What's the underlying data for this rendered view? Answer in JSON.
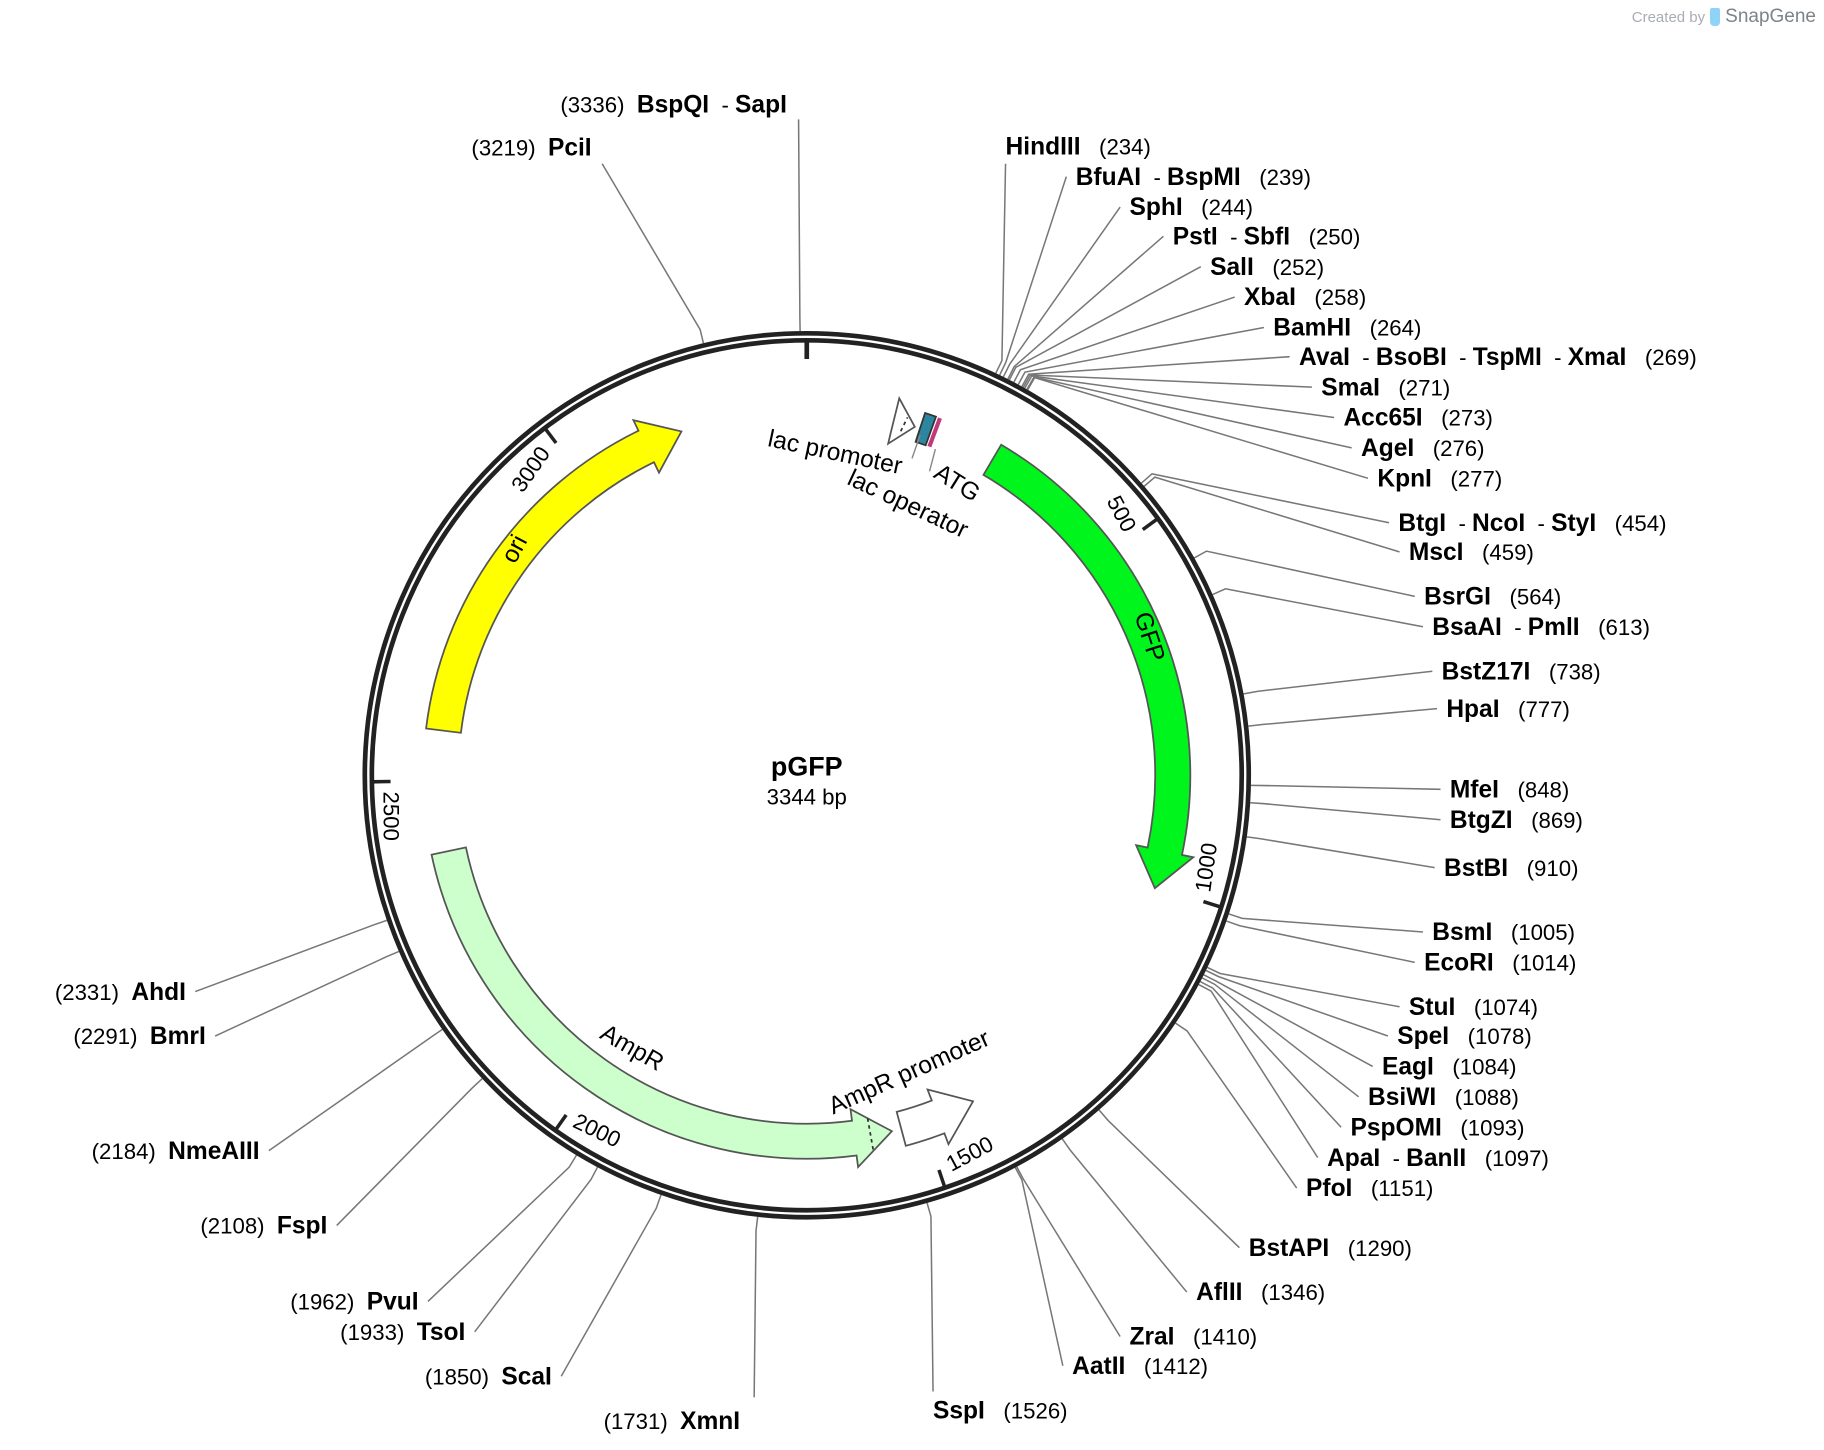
{
  "attribution": {
    "prefix": "Created by",
    "brand": "SnapGene"
  },
  "plasmid": {
    "name": "pGFP",
    "length_label": "3344 bp",
    "length": 3344
  },
  "ticks": [
    {
      "bp": 500,
      "label": "500"
    },
    {
      "bp": 1000,
      "label": "1000"
    },
    {
      "bp": 1500,
      "label": "1500"
    },
    {
      "bp": 2000,
      "label": "2000"
    },
    {
      "bp": 2500,
      "label": "2500"
    },
    {
      "bp": 3000,
      "label": "3000"
    }
  ],
  "features": [
    {
      "name": "GFP",
      "start": 283,
      "end": 1003,
      "direction": "forward",
      "color": "#00f51c",
      "type": "arrow"
    },
    {
      "name": "ori",
      "start": 2573,
      "end": 3158,
      "direction": "forward",
      "color": "#ffff00",
      "type": "arrow"
    },
    {
      "name": "AmpR",
      "start": 1547,
      "end": 2397,
      "direction": "reverse",
      "color": "#ccffcc",
      "type": "arrow"
    },
    {
      "name": "AmpR promoter",
      "start": 1421,
      "end": 1533,
      "direction": "reverse",
      "color": "#ffffff",
      "type": "arrow"
    },
    {
      "name": "lac promoter",
      "start": 128,
      "end": 160,
      "direction": "forward",
      "color": "#ffffff",
      "type": "arrow"
    },
    {
      "name": "lac operator",
      "start": 168,
      "end": 184,
      "direction": "none",
      "color": "#2d86a0",
      "type": "box"
    },
    {
      "name": "ATG",
      "start": 190,
      "end": 192,
      "direction": "none",
      "color": "#c0397a",
      "type": "line"
    }
  ],
  "enzymes": [
    {
      "names": [
        "HindIII"
      ],
      "pos": 234
    },
    {
      "names": [
        "BfuAI",
        "BspMI"
      ],
      "pos": 239
    },
    {
      "names": [
        "SphI"
      ],
      "pos": 244
    },
    {
      "names": [
        "PstI",
        "SbfI"
      ],
      "pos": 250
    },
    {
      "names": [
        "SalI"
      ],
      "pos": 252
    },
    {
      "names": [
        "XbaI"
      ],
      "pos": 258
    },
    {
      "names": [
        "BamHI"
      ],
      "pos": 264
    },
    {
      "names": [
        "AvaI",
        "BsoBI",
        "TspMI",
        "XmaI"
      ],
      "pos": 269
    },
    {
      "names": [
        "SmaI"
      ],
      "pos": 271
    },
    {
      "names": [
        "Acc65I"
      ],
      "pos": 273
    },
    {
      "names": [
        "AgeI"
      ],
      "pos": 276
    },
    {
      "names": [
        "KpnI"
      ],
      "pos": 277
    },
    {
      "names": [
        "BtgI",
        "NcoI",
        "StyI"
      ],
      "pos": 454
    },
    {
      "names": [
        "MscI"
      ],
      "pos": 459
    },
    {
      "names": [
        "BsrGI"
      ],
      "pos": 564
    },
    {
      "names": [
        "BsaAI",
        "PmlI"
      ],
      "pos": 613
    },
    {
      "names": [
        "BstZ17I"
      ],
      "pos": 738
    },
    {
      "names": [
        "HpaI"
      ],
      "pos": 777
    },
    {
      "names": [
        "MfeI"
      ],
      "pos": 848
    },
    {
      "names": [
        "BtgZI"
      ],
      "pos": 869
    },
    {
      "names": [
        "BstBI"
      ],
      "pos": 910
    },
    {
      "names": [
        "BsmI"
      ],
      "pos": 1005
    },
    {
      "names": [
        "EcoRI"
      ],
      "pos": 1014
    },
    {
      "names": [
        "StuI"
      ],
      "pos": 1074
    },
    {
      "names": [
        "SpeI"
      ],
      "pos": 1078
    },
    {
      "names": [
        "EagI"
      ],
      "pos": 1084
    },
    {
      "names": [
        "BsiWI"
      ],
      "pos": 1088
    },
    {
      "names": [
        "PspOMI"
      ],
      "pos": 1093
    },
    {
      "names": [
        "ApaI",
        "BanII"
      ],
      "pos": 1097
    },
    {
      "names": [
        "PfoI"
      ],
      "pos": 1151
    },
    {
      "names": [
        "BstAPI"
      ],
      "pos": 1290
    },
    {
      "names": [
        "AflII"
      ],
      "pos": 1346
    },
    {
      "names": [
        "ZraI"
      ],
      "pos": 1410
    },
    {
      "names": [
        "AatII"
      ],
      "pos": 1412
    },
    {
      "names": [
        "SspI"
      ],
      "pos": 1526
    },
    {
      "names": [
        "XmnI"
      ],
      "pos": 1731
    },
    {
      "names": [
        "ScaI"
      ],
      "pos": 1850
    },
    {
      "names": [
        "TsoI"
      ],
      "pos": 1933
    },
    {
      "names": [
        "PvuI"
      ],
      "pos": 1962
    },
    {
      "names": [
        "FspI"
      ],
      "pos": 2108
    },
    {
      "names": [
        "NmeAIII"
      ],
      "pos": 2184
    },
    {
      "names": [
        "BmrI"
      ],
      "pos": 2291
    },
    {
      "names": [
        "AhdI"
      ],
      "pos": 2331
    },
    {
      "names": [
        "PciI"
      ],
      "pos": 3219
    },
    {
      "names": [
        "BspQI",
        "SapI"
      ],
      "pos": 3336
    }
  ]
}
